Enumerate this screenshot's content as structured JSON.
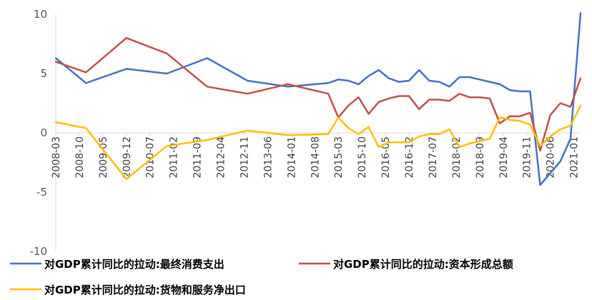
{
  "chart_data": {
    "type": "line",
    "title": "",
    "xlabel": "",
    "ylabel": "",
    "ylim": [
      -10,
      10
    ],
    "yticks": [
      10,
      5,
      0,
      -5,
      -10
    ],
    "xlim": [
      "2008-03",
      "2021-03"
    ],
    "x_tick_labels": [
      "2008-03",
      "2008-10",
      "2009-05",
      "2009-12",
      "2010-07",
      "2011-02",
      "2011-09",
      "2012-04",
      "2012-11",
      "2013-06",
      "2014-01",
      "2014-08",
      "2015-03",
      "2015-10",
      "2016-05",
      "2016-12",
      "2017-07",
      "2018-02",
      "2018-09",
      "2019-04",
      "2019-11",
      "2020-06",
      "2021-01"
    ],
    "grid": false,
    "legend_position": "bottom",
    "series": [
      {
        "name": "对GDP累计同比的拉动:最终消费支出",
        "color": "#4472C4",
        "points": [
          [
            "2008-03",
            6.3
          ],
          [
            "2008-12",
            4.2
          ],
          [
            "2009-12",
            5.4
          ],
          [
            "2010-12",
            5.0
          ],
          [
            "2011-12",
            6.3
          ],
          [
            "2012-12",
            4.4
          ],
          [
            "2013-12",
            3.9
          ],
          [
            "2014-12",
            4.2
          ],
          [
            "2015-03",
            4.5
          ],
          [
            "2015-06",
            4.4
          ],
          [
            "2015-09",
            4.1
          ],
          [
            "2015-12",
            4.8
          ],
          [
            "2016-03",
            5.3
          ],
          [
            "2016-06",
            4.6
          ],
          [
            "2016-09",
            4.3
          ],
          [
            "2016-12",
            4.4
          ],
          [
            "2017-03",
            5.3
          ],
          [
            "2017-06",
            4.4
          ],
          [
            "2017-09",
            4.3
          ],
          [
            "2017-12",
            3.9
          ],
          [
            "2018-03",
            4.7
          ],
          [
            "2018-06",
            4.7
          ],
          [
            "2018-09",
            4.5
          ],
          [
            "2018-12",
            4.3
          ],
          [
            "2019-03",
            4.1
          ],
          [
            "2019-06",
            3.6
          ],
          [
            "2019-09",
            3.5
          ],
          [
            "2019-12",
            3.5
          ],
          [
            "2020-03",
            -4.4
          ],
          [
            "2020-06",
            -3.4
          ],
          [
            "2020-09",
            -2.4
          ],
          [
            "2020-12",
            -0.5
          ],
          [
            "2021-03",
            10.1
          ]
        ]
      },
      {
        "name": "对GDP累计同比的拉动:资本形成总额",
        "color": "#C0504D",
        "points": [
          [
            "2008-03",
            6.0
          ],
          [
            "2008-12",
            5.1
          ],
          [
            "2009-12",
            8.0
          ],
          [
            "2010-12",
            6.7
          ],
          [
            "2011-12",
            3.9
          ],
          [
            "2012-12",
            3.3
          ],
          [
            "2013-12",
            4.1
          ],
          [
            "2014-12",
            3.3
          ],
          [
            "2015-03",
            1.3
          ],
          [
            "2015-06",
            2.3
          ],
          [
            "2015-09",
            3.0
          ],
          [
            "2015-12",
            1.6
          ],
          [
            "2016-03",
            2.6
          ],
          [
            "2016-06",
            2.9
          ],
          [
            "2016-09",
            3.1
          ],
          [
            "2016-12",
            3.1
          ],
          [
            "2017-03",
            2.0
          ],
          [
            "2017-06",
            2.8
          ],
          [
            "2017-09",
            2.8
          ],
          [
            "2017-12",
            2.7
          ],
          [
            "2018-03",
            3.3
          ],
          [
            "2018-06",
            3.0
          ],
          [
            "2018-09",
            3.0
          ],
          [
            "2018-12",
            2.9
          ],
          [
            "2019-03",
            0.8
          ],
          [
            "2019-06",
            1.4
          ],
          [
            "2019-09",
            1.4
          ],
          [
            "2019-12",
            1.7
          ],
          [
            "2020-03",
            -1.5
          ],
          [
            "2020-06",
            1.5
          ],
          [
            "2020-09",
            2.5
          ],
          [
            "2020-12",
            2.2
          ],
          [
            "2021-03",
            4.6
          ]
        ]
      },
      {
        "name": "对GDP累计同比的拉动:货物和服务净出口",
        "color": "#FFC000",
        "points": [
          [
            "2008-03",
            0.9
          ],
          [
            "2008-12",
            0.4
          ],
          [
            "2009-12",
            -3.9
          ],
          [
            "2010-12",
            -1.1
          ],
          [
            "2011-12",
            -0.6
          ],
          [
            "2012-12",
            0.2
          ],
          [
            "2013-12",
            -0.2
          ],
          [
            "2014-12",
            -0.1
          ],
          [
            "2015-03",
            1.3
          ],
          [
            "2015-06",
            0.4
          ],
          [
            "2015-09",
            -0.1
          ],
          [
            "2015-12",
            0.5
          ],
          [
            "2016-03",
            -1.2
          ],
          [
            "2016-06",
            -0.8
          ],
          [
            "2016-09",
            -0.8
          ],
          [
            "2016-12",
            -0.8
          ],
          [
            "2017-03",
            -0.3
          ],
          [
            "2017-06",
            -0.1
          ],
          [
            "2017-09",
            -0.1
          ],
          [
            "2017-12",
            0.3
          ],
          [
            "2018-03",
            -1.2
          ],
          [
            "2018-06",
            -0.9
          ],
          [
            "2018-09",
            -0.7
          ],
          [
            "2018-12",
            -0.5
          ],
          [
            "2019-03",
            1.3
          ],
          [
            "2019-06",
            1.1
          ],
          [
            "2019-09",
            1.0
          ],
          [
            "2019-12",
            0.7
          ],
          [
            "2020-03",
            -1.1
          ],
          [
            "2020-06",
            -0.3
          ],
          [
            "2020-09",
            0.3
          ],
          [
            "2020-12",
            0.6
          ],
          [
            "2021-03",
            2.3
          ]
        ]
      }
    ]
  }
}
